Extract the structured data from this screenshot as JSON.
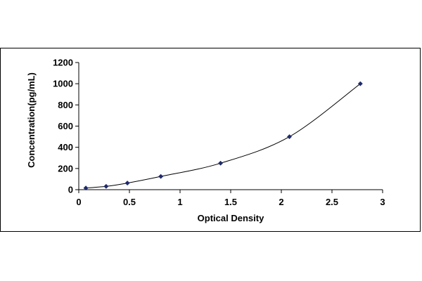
{
  "chart_data": {
    "type": "scatter",
    "title": "",
    "xlabel": "Optical Density",
    "ylabel": "Concentration(pg/mL)",
    "xlim": [
      0,
      3
    ],
    "ylim": [
      0,
      1200
    ],
    "x_ticks": [
      0,
      0.5,
      1,
      1.5,
      2,
      2.5,
      3
    ],
    "x_tick_labels": [
      "0",
      "0.5",
      "1",
      "1.5",
      "2",
      "2.5",
      "3"
    ],
    "y_ticks": [
      0,
      200,
      400,
      600,
      800,
      1000,
      1200
    ],
    "y_tick_labels": [
      "0",
      "200",
      "400",
      "600",
      "800",
      "1000",
      "1200"
    ],
    "grid": false,
    "legend": "none",
    "trendline": "smooth curve through points",
    "series": [
      {
        "marker": "diamond",
        "color": "#1f2a6b",
        "x": [
          0.07,
          0.27,
          0.48,
          0.81,
          1.4,
          2.08,
          2.78
        ],
        "y": [
          15.6,
          31.2,
          62.5,
          125,
          250,
          500,
          1000
        ]
      }
    ]
  }
}
